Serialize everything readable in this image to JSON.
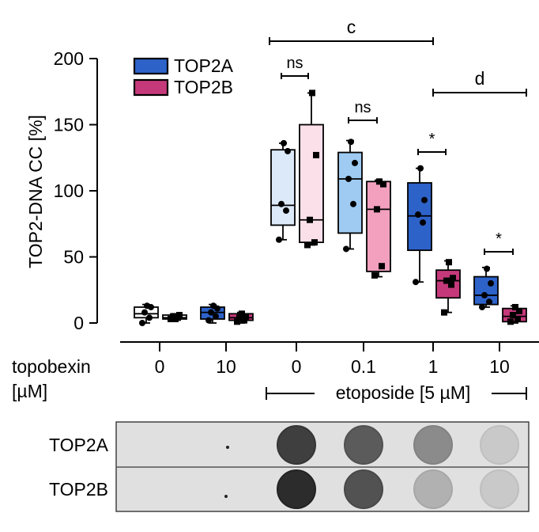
{
  "colors": {
    "top2a_light": "#dce9f8",
    "top2a_mid": "#9fcbf2",
    "top2a_dark": "#2d62c9",
    "top2b_light": "#fbe0ea",
    "top2b_mid": "#f3a0bf",
    "top2b_dark": "#c5397a",
    "blot_bg": "#e0e0e0"
  },
  "chart_data": {
    "type": "box",
    "ylabel": "TOP2-DNA CC [%]",
    "ylim": [
      0,
      200
    ],
    "yticks": [
      "0",
      "50",
      "100",
      "150",
      "200"
    ],
    "xlabel_rows": [
      "topobexin",
      "[µM]"
    ],
    "categories": [
      "0",
      "10",
      "0",
      "0.1",
      "1",
      "10"
    ],
    "etoposide_label": "etoposide [5 µM]",
    "legend": [
      {
        "name": "TOP2A",
        "color": "#2d62c9"
      },
      {
        "name": "TOP2B",
        "color": "#c5397a"
      }
    ],
    "groups": [
      {
        "label": "0",
        "etoposide": false,
        "TOP2A": {
          "min": 0,
          "q1": 4,
          "median": 7,
          "q3": 12,
          "max": 14,
          "points": [
            0,
            4,
            8,
            12,
            13
          ],
          "fill": "#ffffff"
        },
        "TOP2B": {
          "min": 2,
          "q1": 3,
          "median": 4,
          "q3": 6,
          "max": 7,
          "points": [
            3,
            4,
            5,
            6,
            3
          ],
          "fill": "#ffffff"
        }
      },
      {
        "label": "10",
        "etoposide": false,
        "TOP2A": {
          "min": 0,
          "q1": 3,
          "median": 8,
          "q3": 12,
          "max": 14,
          "points": [
            2,
            5,
            8,
            11,
            13
          ],
          "fill": "#2d62c9"
        },
        "TOP2B": {
          "min": 0,
          "q1": 2,
          "median": 4,
          "q3": 7,
          "max": 8,
          "points": [
            1,
            2,
            4,
            5,
            7
          ],
          "fill": "#c5397a"
        }
      },
      {
        "label": "0",
        "etoposide": true,
        "TOP2A": {
          "min": 63,
          "q1": 74,
          "median": 89,
          "q3": 131,
          "max": 136,
          "points": [
            63,
            85,
            90,
            130,
            136
          ],
          "fill": "#dce9f8"
        },
        "TOP2B": {
          "min": 59,
          "q1": 61,
          "median": 78,
          "q3": 150,
          "max": 174,
          "points": [
            59,
            61,
            78,
            127,
            174
          ],
          "fill": "#fbe0ea"
        }
      },
      {
        "label": "0.1",
        "etoposide": true,
        "TOP2A": {
          "min": 56,
          "q1": 68,
          "median": 109,
          "q3": 129,
          "max": 138,
          "points": [
            56,
            90,
            109,
            121,
            137
          ],
          "fill": "#9fcbf2"
        },
        "TOP2B": {
          "min": 35,
          "q1": 39,
          "median": 86,
          "q3": 107,
          "max": 108,
          "points": [
            36,
            43,
            86,
            105,
            107
          ],
          "fill": "#f3a0bf"
        }
      },
      {
        "label": "1",
        "etoposide": true,
        "TOP2A": {
          "min": 31,
          "q1": 55,
          "median": 81,
          "q3": 106,
          "max": 117,
          "points": [
            31,
            76,
            82,
            93,
            117
          ],
          "fill": "#2d62c9"
        },
        "TOP2B": {
          "min": 8,
          "q1": 19,
          "median": 32,
          "q3": 40,
          "max": 47,
          "points": [
            8,
            29,
            32,
            34,
            46
          ],
          "fill": "#c5397a"
        }
      },
      {
        "label": "10",
        "etoposide": true,
        "TOP2A": {
          "min": 12,
          "q1": 14,
          "median": 21,
          "q3": 35,
          "max": 42,
          "points": [
            12,
            16,
            21,
            30,
            41
          ],
          "fill": "#2d62c9"
        },
        "TOP2B": {
          "min": 0,
          "q1": 1,
          "median": 5,
          "q3": 11,
          "max": 13,
          "points": [
            1,
            3,
            6,
            9,
            12
          ],
          "fill": "#c5397a"
        }
      }
    ],
    "significance": [
      {
        "label": "ns",
        "from_group": 2,
        "to_group": 2
      },
      {
        "label": "ns",
        "from_group": 3,
        "to_group": 3
      },
      {
        "label": "*",
        "from_group": 4,
        "to_group": 4
      },
      {
        "label": "*",
        "from_group": 5,
        "to_group": 5
      },
      {
        "label": "c",
        "from_group": 2,
        "to_group": 4
      },
      {
        "label": "d",
        "from_group": 4,
        "to_group": 5
      }
    ]
  },
  "blot": {
    "rows": [
      {
        "label": "TOP2A",
        "intensities": [
          0,
          0.02,
          0.85,
          0.7,
          0.45,
          0.12
        ]
      },
      {
        "label": "TOP2B",
        "intensities": [
          0,
          0.02,
          0.95,
          0.75,
          0.25,
          0.12
        ]
      }
    ]
  }
}
